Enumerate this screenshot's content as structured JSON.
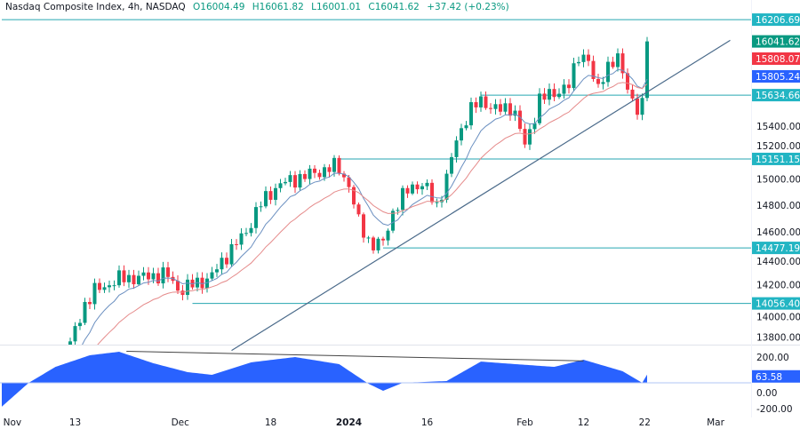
{
  "header": {
    "symbol": "Nasdaq Composite Index, 4h, NASDAQ",
    "open": "O16004.49",
    "high": "H16061.82",
    "low": "L16001.01",
    "close": "C16041.62",
    "change": "+37.42 (+0.23%)"
  },
  "colors": {
    "up": "#089981",
    "down": "#f23645",
    "level": "#26a6b0",
    "trend": "#4a6a8a",
    "ema_fast": "#6a8fc0",
    "ema_slow": "#e58a8a",
    "osc": "#2962ff"
  },
  "price_axis": {
    "ticks": [
      "15400.00",
      "15200.00",
      "15000.00",
      "14800.00",
      "14600.00",
      "14400.00",
      "14200.00",
      "14000.00",
      "13800.00"
    ],
    "tick_values": [
      15400,
      15200,
      15000,
      14800,
      14600,
      14400,
      14200,
      14000,
      13800
    ],
    "levels": [
      {
        "label": "16206.69",
        "value": 16206.69,
        "from_index": 0
      },
      {
        "label": "15634.66",
        "value": 15634.66,
        "from_index": 98
      },
      {
        "label": "15151.15",
        "value": 15151.15,
        "from_index": 69
      },
      {
        "label": "14477.19",
        "value": 14477.19,
        "from_index": 78
      },
      {
        "label": "14056.40",
        "value": 14056.4,
        "from_index": 39
      }
    ],
    "last_price": {
      "label": "16041.62",
      "value": 16041.62
    },
    "ema_slow_tag": {
      "label": "15808.07",
      "value": 15808.07
    },
    "ema_fast_tag": {
      "label": "15805.24",
      "value": 15805.24
    }
  },
  "osc_axis": {
    "ticks": [
      "200.00",
      "0.00",
      "-200.00"
    ],
    "tick_values": [
      200,
      0,
      -200
    ],
    "current": {
      "label": "63.58",
      "value": 63.58
    }
  },
  "time_axis": [
    {
      "label": "Nov",
      "index": 0.3
    },
    {
      "label": "13",
      "index": 15
    },
    {
      "label": "Dec",
      "index": 36.5
    },
    {
      "label": "18",
      "index": 55
    },
    {
      "label": "2024",
      "index": 71,
      "bold": true
    },
    {
      "label": "16",
      "index": 87
    },
    {
      "label": "Feb",
      "index": 107
    },
    {
      "label": "12",
      "index": 119
    },
    {
      "label": "22",
      "index": 131.5
    },
    {
      "label": "Mar",
      "index": 146
    }
  ],
  "chart_data": {
    "type": "candlestick",
    "title": "Nasdaq Composite Index, 4h, NASDAQ",
    "price_range": [
      13700,
      16300
    ],
    "osc_range": [
      -260,
      300
    ],
    "price_path": [
      [
        0,
        13300
      ],
      [
        7,
        13500
      ],
      [
        13.6,
        13700
      ],
      [
        14.5,
        13800
      ],
      [
        17,
        14050
      ],
      [
        19,
        14150
      ],
      [
        24.5,
        14250
      ],
      [
        28,
        14250
      ],
      [
        33.6,
        14280
      ],
      [
        36.4,
        14150
      ],
      [
        39,
        14200
      ],
      [
        42.7,
        14250
      ],
      [
        45.5,
        14400
      ],
      [
        50,
        14600
      ],
      [
        52.7,
        14800
      ],
      [
        56.4,
        14950
      ],
      [
        60,
        15000
      ],
      [
        64.5,
        15050
      ],
      [
        68.7,
        15100
      ],
      [
        71,
        14950
      ],
      [
        72.7,
        14700
      ],
      [
        75.5,
        14500
      ],
      [
        77.8,
        14500
      ],
      [
        80,
        14750
      ],
      [
        83.6,
        14950
      ],
      [
        86.4,
        14950
      ],
      [
        89,
        14800
      ],
      [
        91,
        15000
      ],
      [
        93,
        15300
      ],
      [
        95.5,
        15500
      ],
      [
        98,
        15600
      ],
      [
        101,
        15520
      ],
      [
        104.5,
        15550
      ],
      [
        107,
        15250
      ],
      [
        110,
        15600
      ],
      [
        112.7,
        15650
      ],
      [
        116,
        15700
      ],
      [
        118,
        15950
      ],
      [
        120,
        15900
      ],
      [
        121.5,
        15650
      ],
      [
        123.6,
        15850
      ],
      [
        126.4,
        15900
      ],
      [
        128,
        15700
      ],
      [
        130,
        15500
      ],
      [
        131,
        15550
      ],
      [
        132,
        16041.62
      ]
    ],
    "oscillator_path": [
      [
        0,
        -185
      ],
      [
        5.5,
        0
      ],
      [
        11,
        124
      ],
      [
        18,
        214
      ],
      [
        24,
        241
      ],
      [
        31,
        152
      ],
      [
        38,
        83
      ],
      [
        43,
        62
      ],
      [
        51,
        159
      ],
      [
        60,
        200
      ],
      [
        69,
        145
      ],
      [
        75,
        -7
      ],
      [
        78,
        -62
      ],
      [
        82,
        0
      ],
      [
        91,
        14
      ],
      [
        98,
        165
      ],
      [
        105,
        145
      ],
      [
        113,
        124
      ],
      [
        119,
        179
      ],
      [
        127,
        90
      ],
      [
        131,
        0
      ],
      [
        132,
        63.58
      ]
    ],
    "trendline": [
      [
        47,
        13700
      ],
      [
        149,
        16050
      ]
    ],
    "osc_divergence_line": [
      [
        25.5,
        245
      ],
      [
        119,
        170
      ]
    ]
  }
}
